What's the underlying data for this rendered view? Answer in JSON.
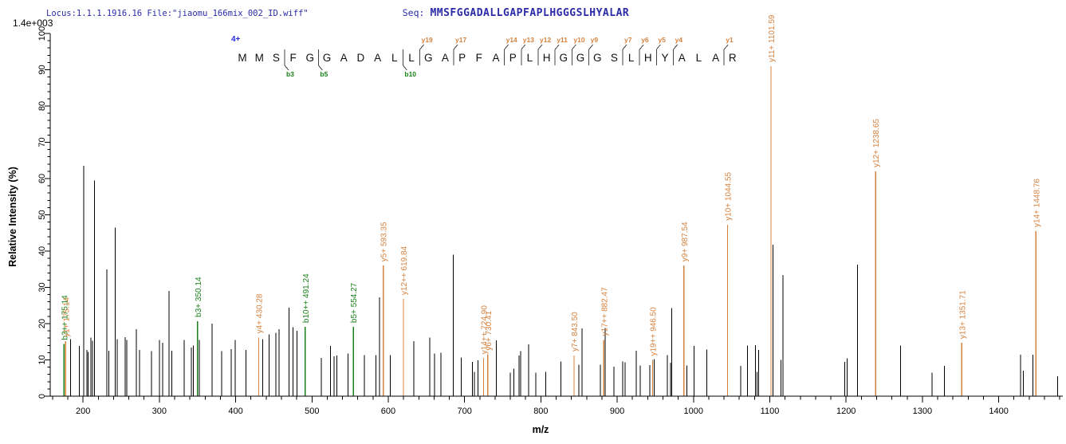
{
  "header": {
    "locus_file": "Locus:1.1.1.1916.16 File:\"jiaomu_166mix_002_ID.wiff\"",
    "seq_label": "Seq:",
    "sequence": "MMSFGGADALLGAPFAPLHGGGSLHYALAR",
    "max_intensity": "1.4e+003"
  },
  "colors": {
    "y_ion": "#d6823f",
    "b_ion": "#188018",
    "peak": "#000000",
    "header_text": "#2b2ba8",
    "charge": "#2a2ae0",
    "axis": "#000000",
    "sequence_letter": "#111111",
    "marker_bar": "#444444"
  },
  "annotation": {
    "charge_label": "4+",
    "residues": "MMSFGGADALLGAPFAPLHGGGSLHYALAR",
    "b_markers": [
      {
        "after": 3,
        "label": "b3"
      },
      {
        "after": 5,
        "label": "b5"
      },
      {
        "after": 10,
        "label": "b10"
      }
    ],
    "y_markers": [
      {
        "after": 11,
        "label": "y19"
      },
      {
        "after": 13,
        "label": "y17"
      },
      {
        "after": 16,
        "label": "y14"
      },
      {
        "after": 17,
        "label": "y13"
      },
      {
        "after": 18,
        "label": "y12"
      },
      {
        "after": 19,
        "label": "y11"
      },
      {
        "after": 20,
        "label": "y10"
      },
      {
        "after": 21,
        "label": "y9"
      },
      {
        "after": 23,
        "label": "y7"
      },
      {
        "after": 24,
        "label": "y6"
      },
      {
        "after": 25,
        "label": "y5"
      },
      {
        "after": 26,
        "label": "y4"
      },
      {
        "after": 29,
        "label": "y1"
      }
    ]
  },
  "chart_data": {
    "type": "bar",
    "variant": "centroided-msms-spectrum",
    "title": "",
    "xlabel": "m/z",
    "ylabel": "Relative  Intensity (%)",
    "xlim": [
      157,
      1484
    ],
    "ylim": [
      0,
      100
    ],
    "x_major_ticks": [
      200,
      300,
      400,
      500,
      600,
      700,
      800,
      900,
      1000,
      1100,
      1200,
      1300,
      1400
    ],
    "x_minor_step": 20,
    "y_major_step": 10,
    "y_minor_step": 2,
    "grid": false,
    "peaks_format": [
      "mz",
      "intensity_pct"
    ],
    "peaks": [
      [
        183.5,
        15.7
      ],
      [
        195,
        13.8
      ],
      [
        201,
        63.5
      ],
      [
        205,
        12.7
      ],
      [
        206.5,
        12.2
      ],
      [
        210.5,
        16.2
      ],
      [
        212.5,
        15.3
      ],
      [
        214.8,
        59.5
      ],
      [
        231,
        35
      ],
      [
        234,
        12.5
      ],
      [
        242,
        46.5
      ],
      [
        245,
        15.7
      ],
      [
        255,
        16.3
      ],
      [
        257.5,
        15.5
      ],
      [
        270,
        18.5
      ],
      [
        274,
        12.7
      ],
      [
        289.5,
        12.4
      ],
      [
        300,
        15.5
      ],
      [
        304.5,
        14.7
      ],
      [
        312.5,
        29
      ],
      [
        316.5,
        12.5
      ],
      [
        332.5,
        15.5
      ],
      [
        342,
        13.4
      ],
      [
        344.5,
        14
      ],
      [
        352.5,
        15.5
      ],
      [
        369,
        20
      ],
      [
        381.5,
        12.4
      ],
      [
        394,
        13
      ],
      [
        399.5,
        15.5
      ],
      [
        413.5,
        12.7
      ],
      [
        435.5,
        15.7
      ],
      [
        444,
        17
      ],
      [
        452.5,
        17.5
      ],
      [
        457,
        18.5
      ],
      [
        470,
        24.4
      ],
      [
        475,
        19
      ],
      [
        480.5,
        18
      ],
      [
        512.5,
        10.5
      ],
      [
        524.5,
        13.8
      ],
      [
        529,
        11
      ],
      [
        532.5,
        11.2
      ],
      [
        547.5,
        11.8
      ],
      [
        568.5,
        11.3
      ],
      [
        584,
        11.3
      ],
      [
        588.5,
        27.3
      ],
      [
        602.5,
        11.3
      ],
      [
        633.5,
        15.2
      ],
      [
        654.5,
        16.2
      ],
      [
        660.5,
        11.8
      ],
      [
        669,
        12
      ],
      [
        685,
        39
      ],
      [
        695.5,
        10.7
      ],
      [
        710.5,
        9.4
      ],
      [
        713,
        6.7
      ],
      [
        717.5,
        9.9
      ],
      [
        741.5,
        15.4
      ],
      [
        760,
        6.5
      ],
      [
        764.5,
        7.6
      ],
      [
        771.5,
        11.2
      ],
      [
        773.5,
        12.4
      ],
      [
        784,
        14.3
      ],
      [
        793.5,
        6.5
      ],
      [
        806.5,
        6.7
      ],
      [
        826.5,
        9.6
      ],
      [
        849.5,
        8.7
      ],
      [
        854,
        18.7
      ],
      [
        878,
        8.7
      ],
      [
        884,
        18.8
      ],
      [
        895.5,
        8.1
      ],
      [
        907,
        9.6
      ],
      [
        910.5,
        9.3
      ],
      [
        925,
        12.5
      ],
      [
        930,
        8.5
      ],
      [
        942.5,
        8.6
      ],
      [
        948.5,
        10.2
      ],
      [
        965.5,
        11.3
      ],
      [
        970,
        9.2
      ],
      [
        971.5,
        24.3
      ],
      [
        991.5,
        8.5
      ],
      [
        1001,
        13.8
      ],
      [
        1017.5,
        12.9
      ],
      [
        1062,
        8.3
      ],
      [
        1071,
        14
      ],
      [
        1081,
        14.1
      ],
      [
        1083.5,
        6.7
      ],
      [
        1085.5,
        12.7
      ],
      [
        1104,
        41.8
      ],
      [
        1114.5,
        10
      ],
      [
        1117,
        33.4
      ],
      [
        1198,
        9.5
      ],
      [
        1201.5,
        10.4
      ],
      [
        1215,
        36.3
      ],
      [
        1271.5,
        14
      ],
      [
        1312.5,
        6.5
      ],
      [
        1329,
        8.4
      ],
      [
        1428.5,
        11.4
      ],
      [
        1432.5,
        7
      ],
      [
        1445,
        11.4
      ],
      [
        1477,
        5.5
      ]
    ],
    "labeled_peaks": [
      {
        "mz": 175.14,
        "i": 14.4,
        "ion": "b",
        "label": "b3++ 175.14"
      },
      {
        "mz": 175.14,
        "i": 15.2,
        "ion": "y",
        "label": "y1+ 175.14",
        "draw_dx": 2
      },
      {
        "mz": 350.14,
        "i": 20.7,
        "ion": "b",
        "label": "b3+ 350.14"
      },
      {
        "mz": 430.28,
        "i": 16.2,
        "ion": "y",
        "label": "y4+ 430.28"
      },
      {
        "mz": 491.24,
        "i": 19.1,
        "ion": "b",
        "label": "b10++ 491.24"
      },
      {
        "mz": 554.27,
        "i": 19.1,
        "ion": "b",
        "label": "b5+ 554.27"
      },
      {
        "mz": 593.35,
        "i": 36.0,
        "ion": "y",
        "label": "y5+ 593.35"
      },
      {
        "mz": 619.84,
        "i": 26.8,
        "ion": "y",
        "label": "y12++ 619.84"
      },
      {
        "mz": 724.9,
        "i": 10.5,
        "ion": "y",
        "label": "y14++ 724.90"
      },
      {
        "mz": 730.41,
        "i": 11.5,
        "ion": "y",
        "label": "y6+ 730.41"
      },
      {
        "mz": 843.5,
        "i": 11.2,
        "ion": "y",
        "label": "y7+ 843.50"
      },
      {
        "mz": 882.47,
        "i": 15.5,
        "ion": "y",
        "label": "y17++ 882.47"
      },
      {
        "mz": 946.5,
        "i": 10.0,
        "ion": "y",
        "label": "y19++ 946.50"
      },
      {
        "mz": 987.54,
        "i": 36.0,
        "ion": "y",
        "label": "y9+ 987.54"
      },
      {
        "mz": 1044.55,
        "i": 47.3,
        "ion": "y",
        "label": "y10+ 1044.55"
      },
      {
        "mz": 1101.59,
        "i": 91.0,
        "ion": "y",
        "label": "y11+ 1101.59"
      },
      {
        "mz": 1238.65,
        "i": 62.0,
        "ion": "y",
        "label": "y12+ 1238.65"
      },
      {
        "mz": 1351.71,
        "i": 14.7,
        "ion": "y",
        "label": "y13+ 1351.71"
      },
      {
        "mz": 1448.76,
        "i": 45.5,
        "ion": "y",
        "label": "y14+ 1448.76"
      }
    ]
  }
}
